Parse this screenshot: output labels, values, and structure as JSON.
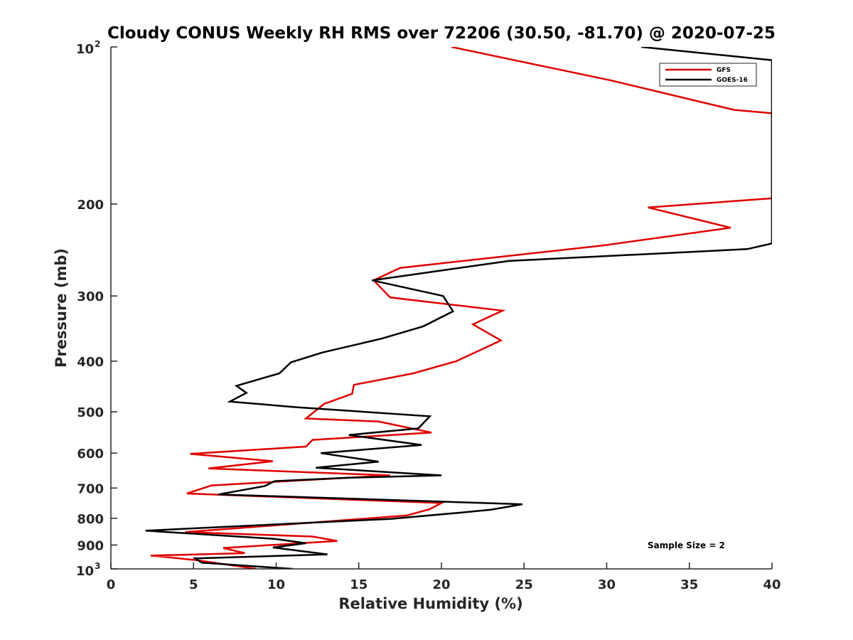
{
  "chart_data": {
    "type": "line",
    "title": "Cloudy CONUS Weekly RH RMS over 72206 (30.50, -81.70) @ 2020-07-25",
    "xlabel": "Relative Humidity (%)",
    "ylabel": "Pressure (mb)",
    "xlim": [
      0,
      40
    ],
    "ylim": [
      100,
      1000
    ],
    "yscale": "log",
    "y_reversed": true,
    "xticks": [
      0,
      5,
      10,
      15,
      20,
      25,
      30,
      35,
      40
    ],
    "xtick_labels": [
      "0",
      "5",
      "10",
      "15",
      "20",
      "25",
      "30",
      "35",
      "40"
    ],
    "yticks": [
      {
        "value": 100,
        "base": "10",
        "exp": "2"
      },
      {
        "value": 200,
        "label": "200"
      },
      {
        "value": 300,
        "label": "300"
      },
      {
        "value": 400,
        "label": "400"
      },
      {
        "value": 500,
        "label": "500"
      },
      {
        "value": 600,
        "label": "600"
      },
      {
        "value": 700,
        "label": "700"
      },
      {
        "value": 800,
        "label": "800"
      },
      {
        "value": 900,
        "label": "900"
      },
      {
        "value": 1000,
        "base": "10",
        "exp": "3"
      }
    ],
    "legend_position": "top-right",
    "annotation": "Sample Size = 2",
    "series": [
      {
        "name": "GFS",
        "color": "#e00000",
        "points": [
          [
            20.6,
            100
          ],
          [
            30.3,
            116
          ],
          [
            37.7,
            132
          ],
          [
            40.0,
            134
          ],
          [
            40.0,
            195
          ],
          [
            32.5,
            203
          ],
          [
            37.5,
            222
          ],
          [
            29.8,
            240
          ],
          [
            17.5,
            265
          ],
          [
            15.9,
            280
          ],
          [
            16.9,
            302
          ],
          [
            23.7,
            320
          ],
          [
            21.9,
            340
          ],
          [
            23.6,
            365
          ],
          [
            20.9,
            400
          ],
          [
            18.3,
            422
          ],
          [
            14.7,
            444
          ],
          [
            14.6,
            462
          ],
          [
            12.9,
            483
          ],
          [
            11.8,
            515
          ],
          [
            16.2,
            522
          ],
          [
            19.4,
            548
          ],
          [
            12.2,
            566
          ],
          [
            11.8,
            583
          ],
          [
            4.8,
            602
          ],
          [
            9.8,
            622
          ],
          [
            5.9,
            642
          ],
          [
            16.9,
            662
          ],
          [
            6.1,
            692
          ],
          [
            4.6,
            717
          ],
          [
            20.0,
            748
          ],
          [
            19.3,
            768
          ],
          [
            17.9,
            790
          ],
          [
            4.5,
            850
          ],
          [
            12.2,
            867
          ],
          [
            13.7,
            884
          ],
          [
            6.8,
            912
          ],
          [
            8.1,
            933
          ],
          [
            2.4,
            943
          ],
          [
            5.2,
            962
          ],
          [
            8.8,
            1000
          ]
        ]
      },
      {
        "name": "GOES-16",
        "color": "#000000",
        "points": [
          [
            32.1,
            100
          ],
          [
            40.0,
            106
          ],
          [
            40.0,
            238
          ],
          [
            38.5,
            244
          ],
          [
            24.1,
            257
          ],
          [
            15.8,
            280
          ],
          [
            20.1,
            300
          ],
          [
            20.7,
            321
          ],
          [
            18.9,
            343
          ],
          [
            16.4,
            362
          ],
          [
            12.8,
            385
          ],
          [
            10.9,
            402
          ],
          [
            10.2,
            422
          ],
          [
            7.6,
            446
          ],
          [
            8.2,
            460
          ],
          [
            7.2,
            478
          ],
          [
            11.2,
            490
          ],
          [
            19.3,
            510
          ],
          [
            18.6,
            538
          ],
          [
            14.4,
            554
          ],
          [
            18.8,
            579
          ],
          [
            12.7,
            600
          ],
          [
            16.2,
            623
          ],
          [
            12.4,
            640
          ],
          [
            20.0,
            662
          ],
          [
            14.3,
            669
          ],
          [
            9.9,
            679
          ],
          [
            9.3,
            694
          ],
          [
            6.5,
            720
          ],
          [
            24.9,
            752
          ],
          [
            23.0,
            770
          ],
          [
            21.0,
            781
          ],
          [
            16.9,
            802
          ],
          [
            2.1,
            845
          ],
          [
            9.9,
            876
          ],
          [
            11.8,
            893
          ],
          [
            9.8,
            910
          ],
          [
            13.1,
            938
          ],
          [
            5.1,
            955
          ],
          [
            5.5,
            973
          ],
          [
            11.0,
            1000
          ]
        ]
      }
    ]
  }
}
